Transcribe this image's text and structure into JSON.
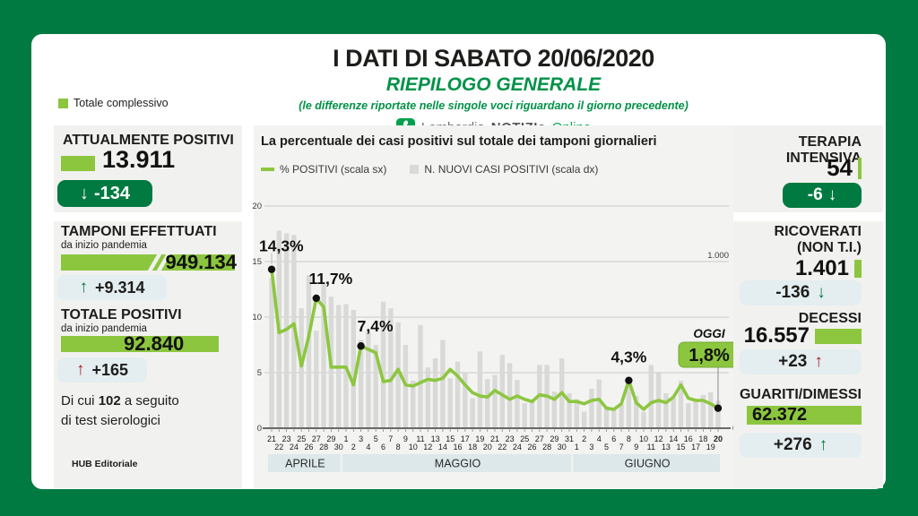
{
  "colors": {
    "frame_green": "#007a40",
    "bright_green": "#8cc63f",
    "title_green": "#009247",
    "logo_green": "#00a14d",
    "pill_light": "#e4edef",
    "red_arrow": "#a81d22"
  },
  "header": {
    "title": "I DATI DI SABATO 20/06/2020",
    "subtitle": "RIEPILOGO GENERALE",
    "note": "(le differenze riportate nelle singole voci riguardano il giorno precedente)",
    "brand": {
      "logo_icon": "rosa-camuna-icon",
      "name": "Lombardia",
      "bold": "NOTIZIe",
      "suffix": "Online"
    }
  },
  "legend_total": {
    "label": "Totale complessivo"
  },
  "left": {
    "attualmente": {
      "title": "ATTUALMENTE POSITIVI",
      "value": "13.911",
      "arrow": "↓",
      "delta": "-134"
    },
    "tamponi": {
      "title": "TAMPONI EFFETTUATI",
      "subtitle": "da inizio pandemia",
      "value": "949.134",
      "arrow": "↑",
      "delta": "+9.314"
    },
    "totale": {
      "title": "TOTALE POSITIVI",
      "subtitle": "da inizio pandemia",
      "value": "92.840",
      "arrow": "↑",
      "delta": "+165"
    },
    "note": {
      "prefix": "Di cui ",
      "bold": "102",
      "suffix": " a seguito",
      "line2": "di test sierologici"
    },
    "footer": "HUB Editoriale"
  },
  "right": {
    "terapia": {
      "title": "TERAPIA INTENSIVA",
      "value": "54",
      "delta": "-6",
      "arrow": "↓"
    },
    "ricoverati": {
      "title_line1": "RICOVERATI",
      "title_line2": "(NON T.I.)",
      "value": "1.401",
      "delta": "-136",
      "arrow": "↓"
    },
    "decessi": {
      "title": "DECESSI",
      "value": "16.557",
      "delta": "+23",
      "arrow": "↑"
    },
    "guariti": {
      "title": "GUARITI/DIMESSI",
      "value": "62.372",
      "delta": "+276",
      "arrow": "↑"
    }
  },
  "chart_data": {
    "type": "line+bar",
    "title": "La percentuale dei casi positivi sul totale dei tamponi giornalieri",
    "legend": [
      {
        "label": "% POSITIVI (scala sx)",
        "type": "line",
        "color": "#8cc63f"
      },
      {
        "label": "N. NUOVI CASI POSITIVI (scala dx)",
        "type": "bar",
        "color": "#d9d9d7"
      }
    ],
    "y_left": {
      "ticks": [
        0,
        5,
        10,
        15,
        20
      ],
      "max": 20
    },
    "y_right": {
      "ticks": [
        {
          "label": "1.000",
          "value": 1000
        },
        {
          "label": "0",
          "value": 0
        }
      ]
    },
    "x_days": [
      "21",
      "22",
      "23",
      "24",
      "25",
      "26",
      "27",
      "28",
      "29",
      "30",
      "1",
      "2",
      "3",
      "4",
      "5",
      "6",
      "7",
      "8",
      "9",
      "10",
      "11",
      "12",
      "13",
      "14",
      "15",
      "16",
      "17",
      "18",
      "19",
      "20",
      "21",
      "22",
      "23",
      "24",
      "25",
      "26",
      "27",
      "28",
      "29",
      "30",
      "31",
      "1",
      "2",
      "3",
      "4",
      "5",
      "6",
      "7",
      "8",
      "9",
      "10",
      "11",
      "12",
      "13",
      "14",
      "15",
      "16",
      "17",
      "18",
      "19",
      "20"
    ],
    "months": [
      {
        "label": "APRILE",
        "start": 0,
        "end": 9
      },
      {
        "label": "MAGGIO",
        "start": 10,
        "end": 40
      },
      {
        "label": "GIUGNO",
        "start": 41,
        "end": 60
      }
    ],
    "series": [
      {
        "name": "% POSITIVI (scala sx)",
        "axis": "left",
        "values": [
          14.3,
          8.6,
          8.9,
          9.4,
          5.6,
          8.3,
          11.7,
          10.9,
          5.5,
          5.5,
          5.5,
          3.9,
          7.4,
          7.1,
          6.8,
          4.2,
          4.3,
          5.3,
          3.9,
          3.8,
          4.1,
          4.4,
          4.3,
          4.5,
          5.3,
          4.7,
          3.9,
          3.2,
          2.9,
          2.8,
          3.4,
          3.0,
          2.6,
          2.9,
          2.6,
          2.4,
          3.0,
          2.9,
          2.6,
          3.2,
          2.4,
          2.4,
          2.2,
          2.5,
          2.6,
          1.8,
          1.7,
          2.2,
          4.3,
          2.3,
          1.7,
          2.3,
          2.5,
          2.3,
          2.8,
          3.9,
          2.7,
          2.5,
          2.5,
          2.2,
          1.8
        ]
      },
      {
        "name": "N. NUOVI CASI POSITIVI (scala dx)",
        "axis": "right",
        "values": [
          900,
          1185,
          1170,
          1160,
          720,
          920,
          585,
          865,
          790,
          740,
          745,
          710,
          530,
          580,
          500,
          760,
          720,
          635,
          500,
          285,
          620,
          365,
          420,
          530,
          300,
          400,
          330,
          180,
          460,
          295,
          320,
          440,
          390,
          290,
          150,
          160,
          380,
          380,
          220,
          420,
          210,
          175,
          99,
          237,
          292,
          130,
          120,
          143,
          280,
          194,
          99,
          380,
          330,
          210,
          180,
          285,
          150,
          160,
          200,
          215,
          165
        ]
      }
    ],
    "annotations": [
      {
        "index": 0,
        "label": "14,3%"
      },
      {
        "index": 6,
        "label": "11,7%"
      },
      {
        "index": 12,
        "label": "7,4%"
      },
      {
        "index": 48,
        "label": "4,3%"
      }
    ],
    "today": {
      "label": "OGGI",
      "value": "1,8%",
      "index": 60
    }
  }
}
